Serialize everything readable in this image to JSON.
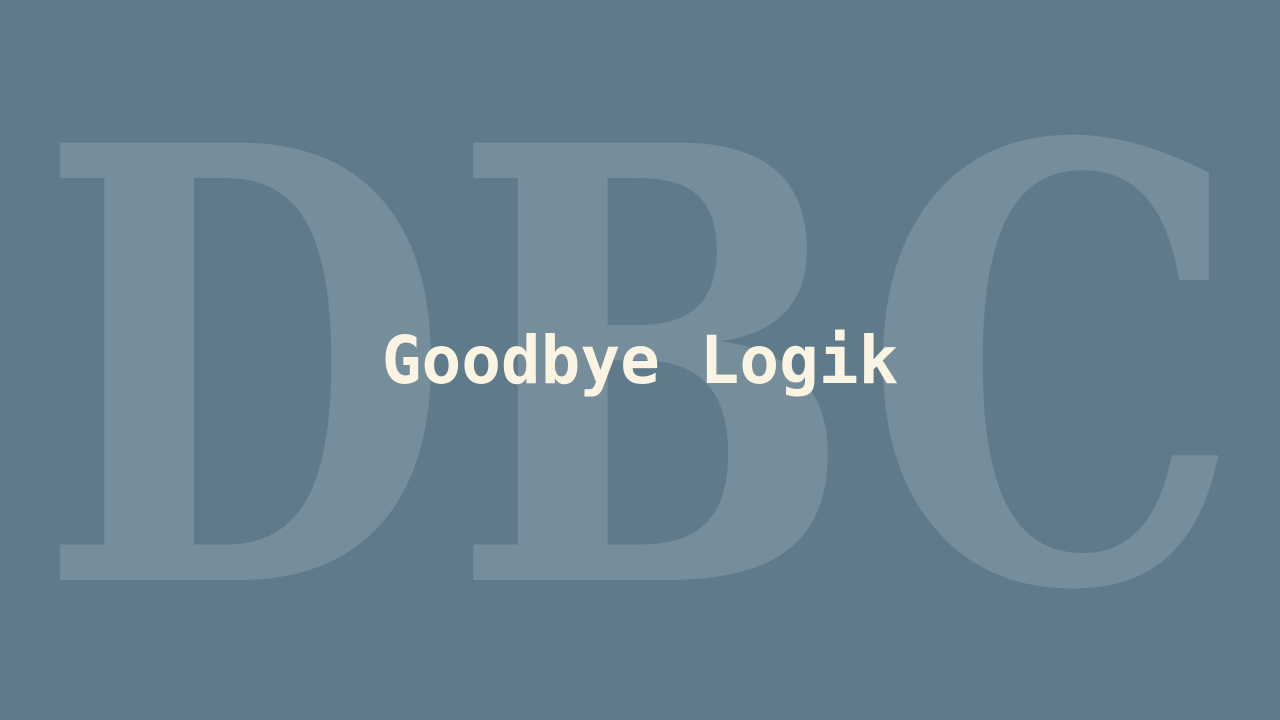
{
  "background_monogram": "DBC",
  "title": "Goodbye Logik",
  "colors": {
    "background": "#5f7b8b",
    "title": "#fbf4e2",
    "monogram": "#ffffff"
  }
}
